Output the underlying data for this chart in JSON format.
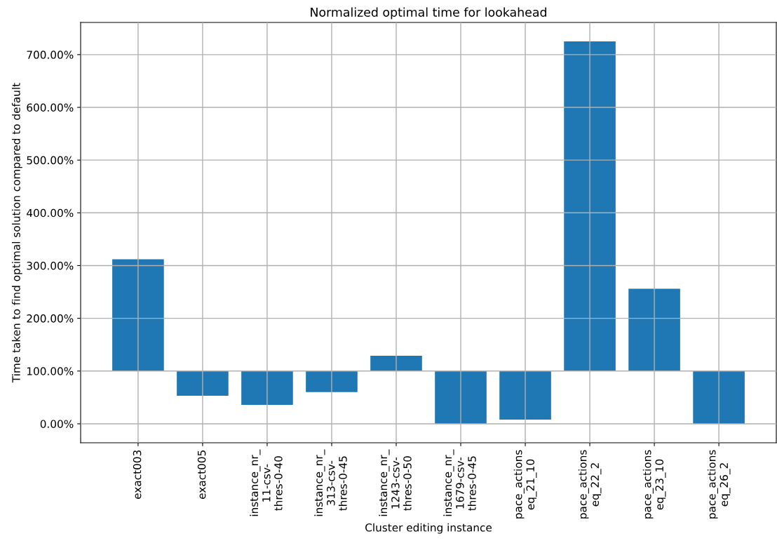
{
  "chart_data": {
    "type": "bar",
    "title": "Normalized optimal time for lookahead",
    "xlabel": "Cluster editing instance",
    "ylabel": "Time taken to find optimal solution compared to default",
    "categories": [
      "exact003",
      "exact005",
      "instance_nr_\n11-csv-\nthres-0-40",
      "instance_nr_\n313-csv-\nthres-0-45",
      "instance_nr_\n1243-csv-\nthres-0-50",
      "instance_nr_\n1679-csv-\nthres-0-45",
      "pace_actions\neq_21_10",
      "pace_actions\neq_22_2",
      "pace_actions\neq_23_10",
      "pace_actions\neq_26_2"
    ],
    "values": [
      212,
      -47,
      -64,
      -40,
      29,
      -100,
      -92,
      625,
      156,
      -100
    ],
    "base": [
      100,
      100,
      100,
      100,
      100,
      100,
      100,
      100,
      100,
      100
    ],
    "color": "#1f77b4",
    "ylim": [
      -36,
      761
    ],
    "yticks": [
      {
        "value": 0,
        "label": "0.00%"
      },
      {
        "value": 100,
        "label": "100.00%"
      },
      {
        "value": 200,
        "label": "200.00%"
      },
      {
        "value": 300,
        "label": "300.00%"
      },
      {
        "value": 400,
        "label": "400.00%"
      },
      {
        "value": 500,
        "label": "500.00%"
      },
      {
        "value": 600,
        "label": "600.00%"
      },
      {
        "value": 700,
        "label": "700.00%"
      }
    ],
    "grid": true
  }
}
